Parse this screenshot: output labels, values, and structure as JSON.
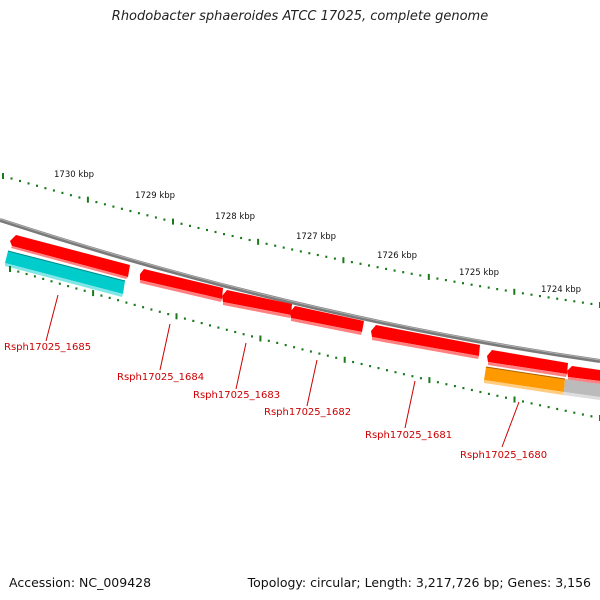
{
  "title": "Rhodobacter sphaeroides ATCC 17025, complete genome",
  "footer": {
    "accession": "Accession: NC_009428",
    "summary": "Topology: circular; Length: 3,217,726 bp; Genes: 3,156"
  },
  "ticks": [
    "1730 kbp",
    "1729 kbp",
    "1728 kbp",
    "1727 kbp",
    "1726 kbp",
    "1725 kbp",
    "1724 kbp"
  ],
  "gene_labels": [
    "Rsph17025_1685",
    "Rsph17025_1684",
    "Rsph17025_1683",
    "Rsph17025_1682",
    "Rsph17025_1681",
    "Rsph17025_1680"
  ],
  "colors": {
    "backbone": "#808080",
    "gene": "#ff0000",
    "cds": "#00cccc",
    "orange_feature": "#ff9900",
    "grey_feature": "#bbbbbb",
    "tick": "#1a7a1a",
    "label": "#cc0000"
  }
}
